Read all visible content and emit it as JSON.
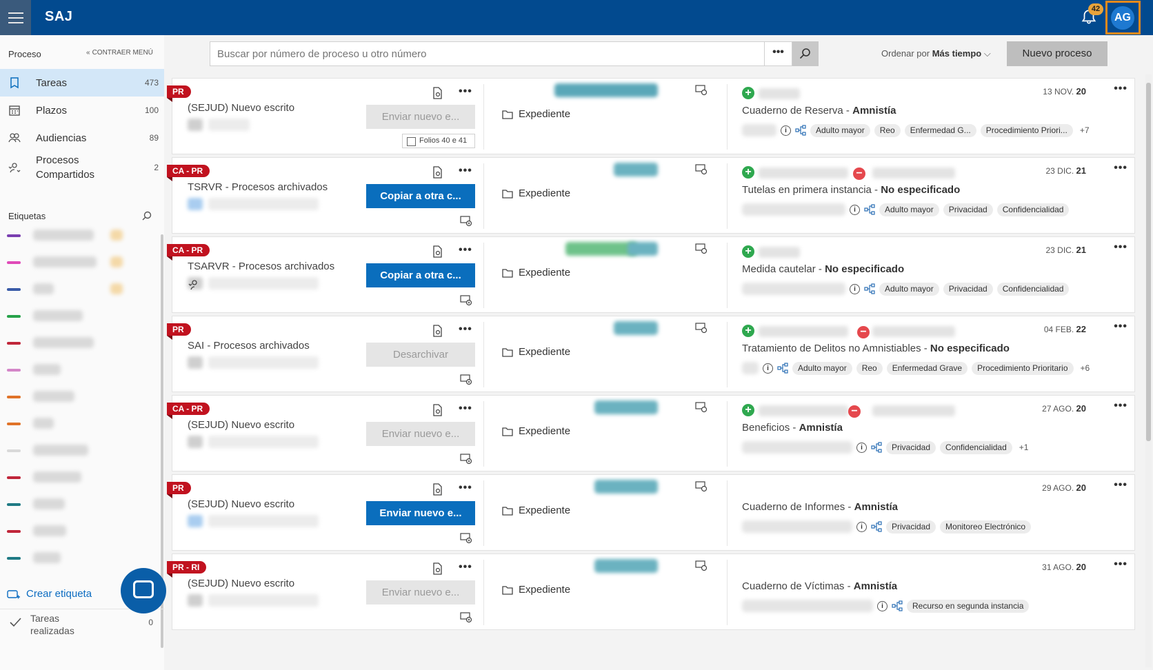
{
  "app": {
    "title": "SAJ"
  },
  "header": {
    "notifications_count": "42",
    "avatar_initials": "AG"
  },
  "sidebar": {
    "section_title": "Proceso",
    "collapse_label": "CONTRAER MENÚ",
    "items": [
      {
        "label": "Tareas",
        "count": "473",
        "icon": "bookmark-icon"
      },
      {
        "label": "Plazos",
        "count": "100",
        "icon": "calendar-icon"
      },
      {
        "label": "Audiencias",
        "count": "89",
        "icon": "people-icon"
      },
      {
        "label": "Procesos Compartidos",
        "count": "2",
        "icon": "shared-person-icon"
      }
    ],
    "labels_title": "Etiquetas",
    "label_colors": [
      "#7a3fb0",
      "#e04ab8",
      "#3a5ba8",
      "#27a24a",
      "#c0263a",
      "#d486c8",
      "#e07328",
      "#e07328",
      "#d9d9d9",
      "#c0263a",
      "#1f7a84",
      "#c0263a",
      "#1f7a84"
    ],
    "create_label": "Crear etiqueta",
    "done_label": "Tareas realizadas",
    "done_count": "0"
  },
  "toolbar": {
    "search_placeholder": "Buscar por número de proceso u otro número",
    "more_label": "•••",
    "order_prefix": "Ordenar por",
    "order_value": "Más tiempo",
    "new_process_label": "Nuevo proceso"
  },
  "cards": [
    {
      "tag": "PR",
      "title": "(SEJUD) Nuevo escrito",
      "action": "Enviar nuevo e...",
      "action_style": "disabled",
      "folios": "Folios 40 e 41",
      "expediente": "Expediente",
      "case_type": "Cuaderno de Reserva",
      "case_subject": "Amnistía",
      "date_day": "13 NOV.",
      "date_year": "20",
      "chips": [
        "Adulto mayor",
        "Reo",
        "Enfermedad G...",
        "Procedimiento Priori..."
      ],
      "extra": "+7",
      "has_minus": false
    },
    {
      "tag": "CA - PR",
      "title": "TSRVR - Procesos archivados",
      "action": "Copiar a otra c...",
      "action_style": "primary",
      "expediente": "Expediente",
      "case_type": "Tutelas en primera instancia",
      "case_subject": "No especificado",
      "date_day": "23 DIC.",
      "date_year": "21",
      "chips": [
        "Adulto mayor",
        "Privacidad",
        "Confidencialidad"
      ],
      "extra": "",
      "has_minus": true
    },
    {
      "tag": "CA - PR",
      "title": "TSARVR - Procesos archivados",
      "action": "Copiar a otra c...",
      "action_style": "primary",
      "expediente": "Expediente",
      "case_type": "Medida cautelar",
      "case_subject": "No especificado",
      "date_day": "23 DIC.",
      "date_year": "21",
      "chips": [
        "Adulto mayor",
        "Privacidad",
        "Confidencialidad"
      ],
      "extra": "",
      "has_minus": false
    },
    {
      "tag": "PR",
      "title": "SAI - Procesos archivados",
      "action": "Desarchivar",
      "action_style": "disabled",
      "expediente": "Expediente",
      "case_type": "Tratamiento de Delitos no Amnistiables",
      "case_subject": "No especificado",
      "date_day": "04 FEB.",
      "date_year": "22",
      "chips": [
        "Adulto mayor",
        "Reo",
        "Enfermedad Grave",
        "Procedimiento Prioritario"
      ],
      "extra": "+6",
      "has_minus": true
    },
    {
      "tag": "CA - PR",
      "title": "(SEJUD) Nuevo escrito",
      "action": "Enviar nuevo e...",
      "action_style": "disabled",
      "expediente": "Expediente",
      "case_type": "Beneficios",
      "case_subject": "Amnistía",
      "date_day": "27 AGO.",
      "date_year": "20",
      "chips": [
        "Privacidad",
        "Confidencialidad"
      ],
      "extra": "+1",
      "has_minus": true
    },
    {
      "tag": "PR",
      "title": "(SEJUD) Nuevo escrito",
      "action": "Enviar nuevo e...",
      "action_style": "primary",
      "expediente": "Expediente",
      "case_type": "Cuaderno de Informes",
      "case_subject": "Amnistía",
      "date_day": "29 AGO.",
      "date_year": "20",
      "chips": [
        "Privacidad",
        "Monitoreo Electrónico"
      ],
      "extra": "",
      "has_minus": false
    },
    {
      "tag": "PR - RI",
      "title": "(SEJUD) Nuevo escrito",
      "action": "Enviar nuevo e...",
      "action_style": "disabled",
      "expediente": "Expediente",
      "case_type": "Cuaderno de Víctimas",
      "case_subject": "Amnistía",
      "date_day": "31 AGO.",
      "date_year": "20",
      "chips": [
        "Recurso en segunda instancia"
      ],
      "extra": "",
      "has_minus": false
    }
  ]
}
